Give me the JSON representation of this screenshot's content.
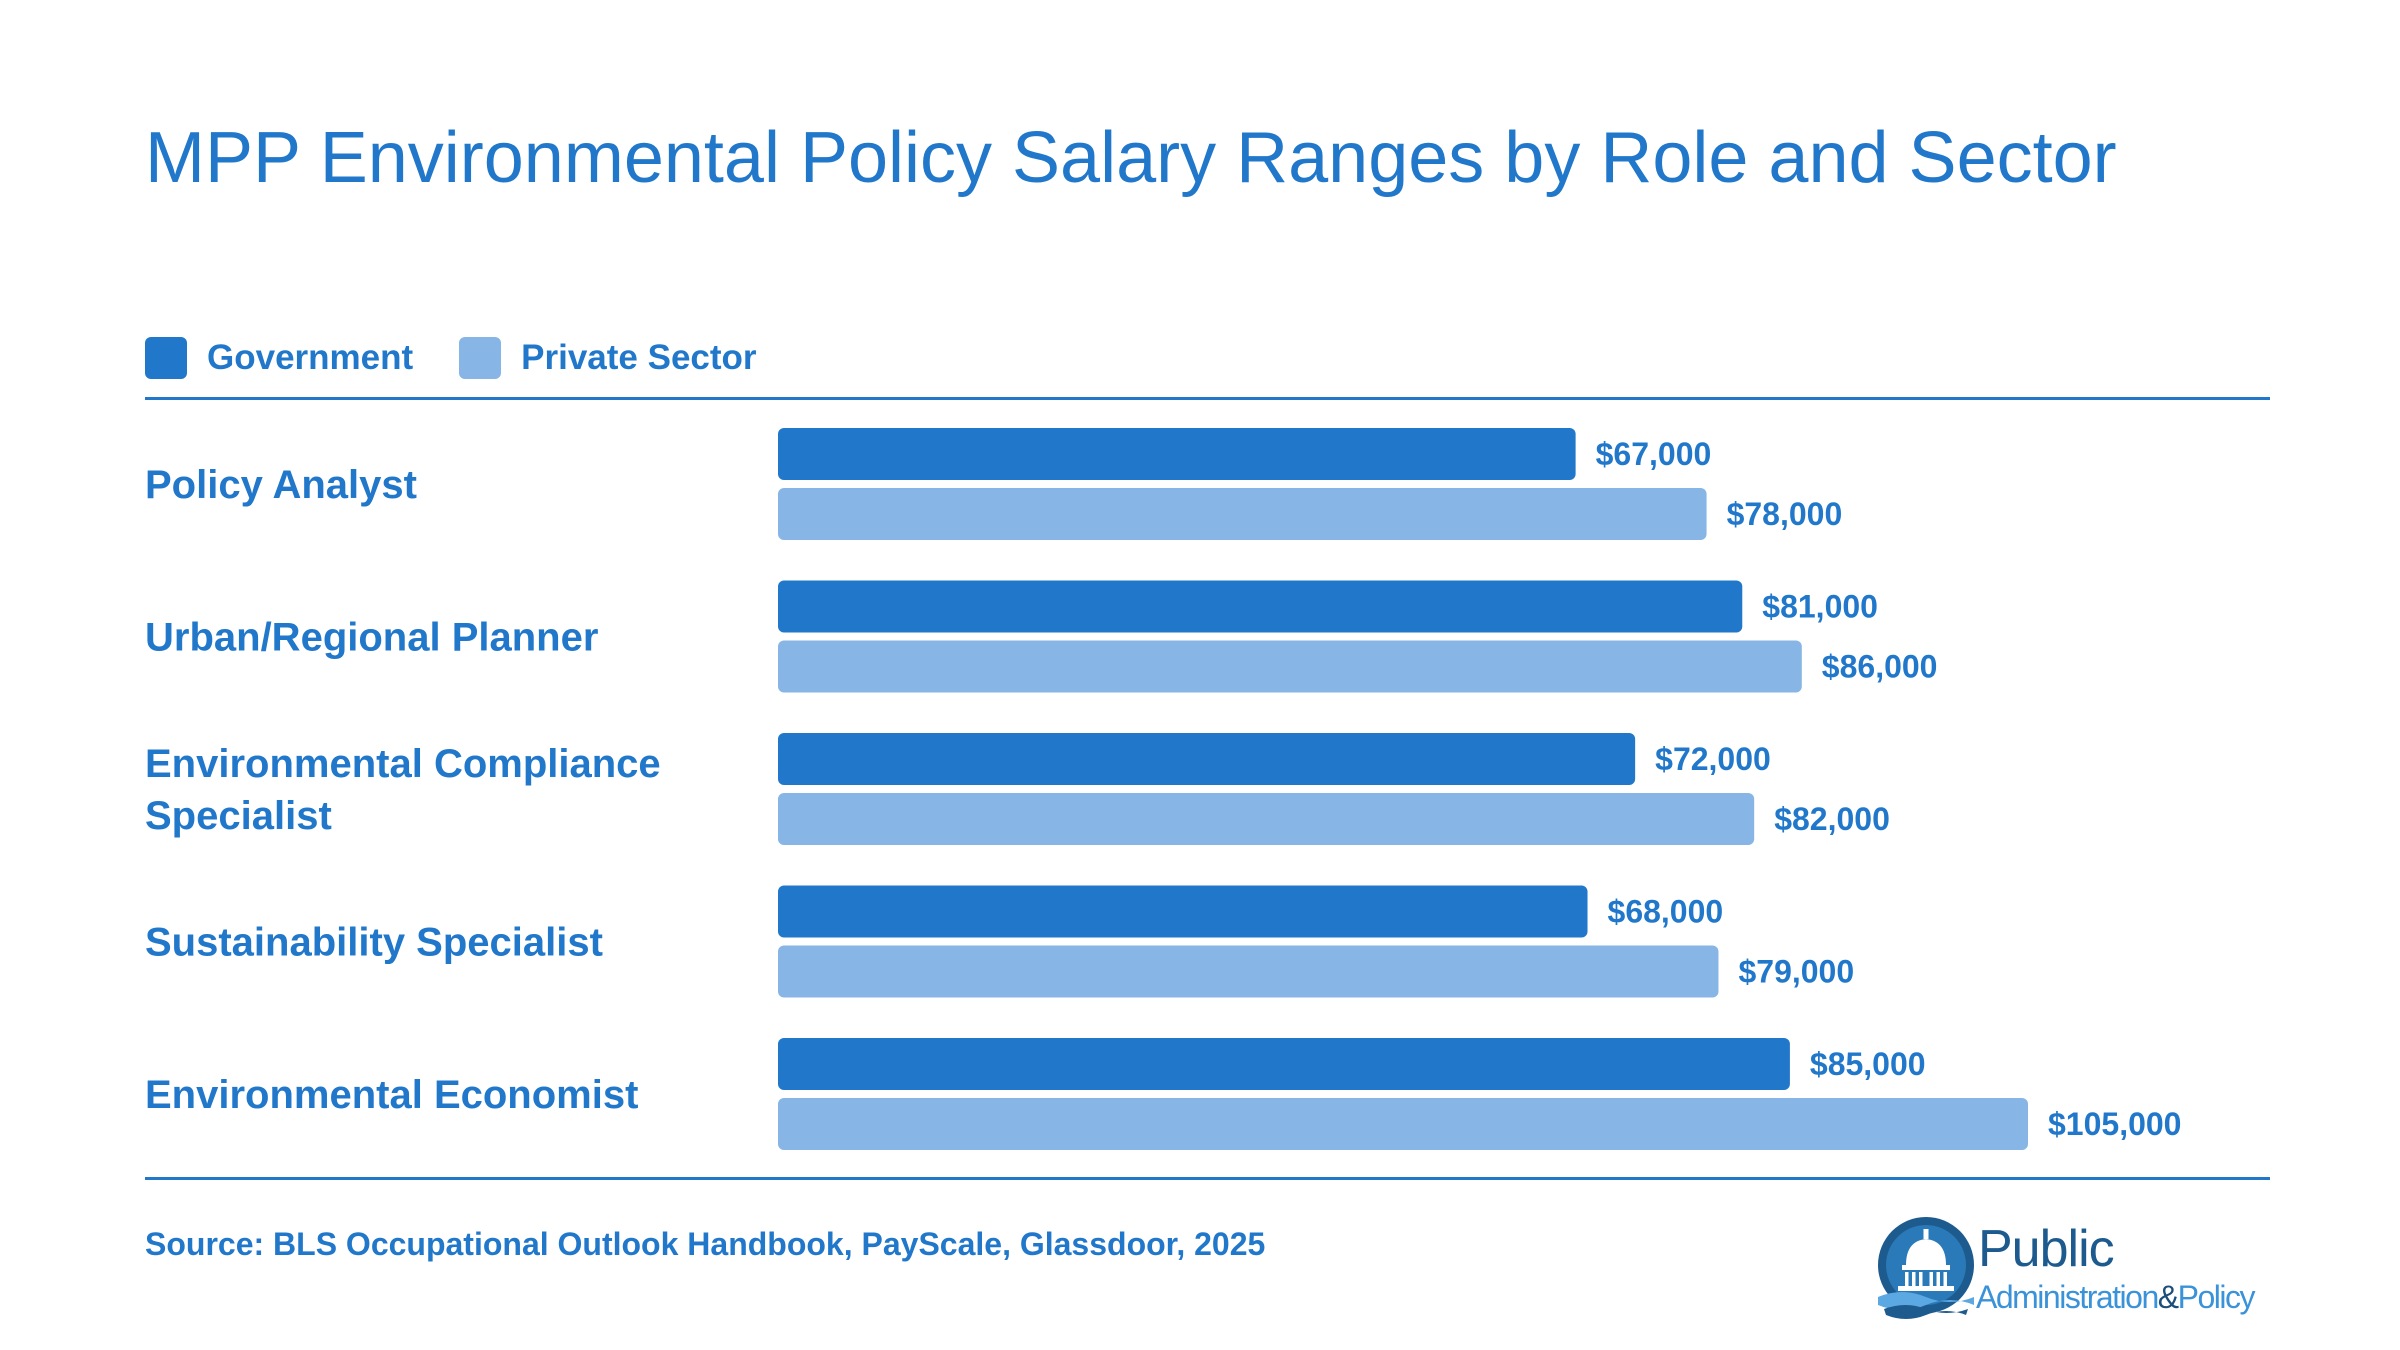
{
  "title": "MPP Environmental Policy Salary Ranges by Role and Sector",
  "colors": {
    "government": "#2178CA",
    "private": "#87B6E6",
    "text": "#2178CA"
  },
  "legend": {
    "items": [
      {
        "label": "Government",
        "color": "#2178CA"
      },
      {
        "label": "Private Sector",
        "color": "#87B6E6"
      }
    ]
  },
  "chart_data": {
    "type": "bar",
    "orientation": "horizontal",
    "title": "MPP Environmental Policy Salary Ranges by Role and Sector",
    "categories": [
      "Policy Analyst",
      "Urban/Regional Planner",
      "Environmental Compliance Specialist",
      "Sustainability Specialist",
      "Environmental Economist"
    ],
    "series": [
      {
        "name": "Government",
        "values": [
          67000,
          81000,
          72000,
          68000,
          85000
        ],
        "labels": [
          "$67,000",
          "$81,000",
          "$72,000",
          "$68,000",
          "$85,000"
        ]
      },
      {
        "name": "Private Sector",
        "values": [
          78000,
          86000,
          82000,
          79000,
          105000
        ],
        "labels": [
          "$78,000",
          "$86,000",
          "$82,000",
          "$79,000",
          "$105,000"
        ]
      }
    ],
    "xlim": [
      0,
      105000
    ],
    "grid": false,
    "legend_position": "top-left"
  },
  "footer": {
    "source": "Source: BLS Occupational Outlook Handbook, PayScale, Glassdoor, 2025"
  },
  "logo": {
    "line1": "Public",
    "line2_a": "Administration",
    "line2_b": "&",
    "line2_c": "Policy",
    "icon": "capitol-dome-icon"
  }
}
